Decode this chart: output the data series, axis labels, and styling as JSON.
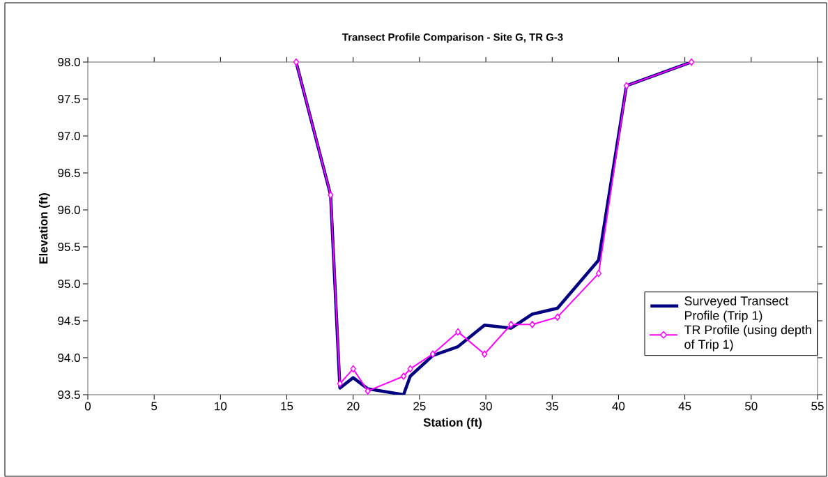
{
  "chart_data": {
    "type": "line",
    "title": "Transect Profile Comparison - Site G, TR G-3",
    "xlabel": "Station (ft)",
    "ylabel": "Elevation (ft)",
    "xlim": [
      0,
      55
    ],
    "xticks": [
      0,
      5,
      10,
      15,
      20,
      25,
      30,
      35,
      40,
      45,
      50,
      55
    ],
    "ylim": [
      93.5,
      98.0
    ],
    "yticks": [
      93.5,
      {
        "value": 94,
        "label": "94.0"
      },
      94.5,
      {
        "value": 95,
        "label": "95.0"
      },
      95.5,
      {
        "value": 96,
        "label": "96.0"
      },
      96.5,
      {
        "value": 97,
        "label": "97.0"
      },
      97.5,
      {
        "value": 98,
        "label": "98.0"
      }
    ],
    "grid": false,
    "legend": "bottom right",
    "series": [
      {
        "name": "Surveyed Transect Profile (Trip 1)",
        "color": "#000080",
        "marker": "none",
        "x": [
          15.7,
          18.3,
          19.0,
          20.0,
          21.1,
          23.8,
          24.3,
          26.0,
          27.9,
          29.9,
          31.9,
          33.5,
          35.4,
          38.5,
          40.6,
          45.5
        ],
        "values": [
          98.0,
          96.2,
          93.59,
          93.73,
          93.58,
          93.5,
          93.75,
          94.03,
          94.15,
          94.44,
          94.4,
          94.59,
          94.67,
          95.32,
          97.68,
          98.0
        ]
      },
      {
        "name": "TR Profile (using depth of Trip 1)",
        "color": "#ff00ff",
        "marker": "diamond",
        "x": [
          15.7,
          18.3,
          19.0,
          20.0,
          21.1,
          23.8,
          24.3,
          26.0,
          27.9,
          29.9,
          31.9,
          33.5,
          35.4,
          38.5,
          40.6,
          45.5
        ],
        "values": [
          98.0,
          96.2,
          93.65,
          93.85,
          93.55,
          93.75,
          93.85,
          94.05,
          94.35,
          94.05,
          94.45,
          94.45,
          94.55,
          95.14,
          97.68,
          98.0
        ]
      }
    ]
  }
}
